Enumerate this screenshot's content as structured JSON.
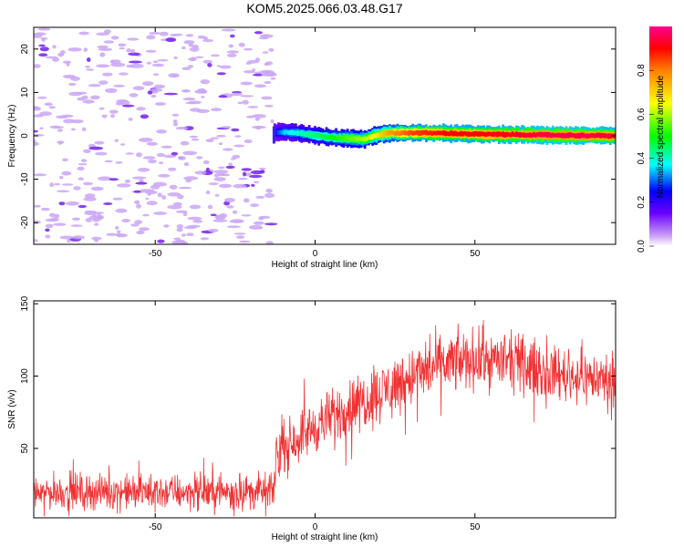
{
  "title": "KOM5.2025.066.03.48.G17",
  "chart_data": [
    {
      "type": "heatmap",
      "xlabel": "Height of straight line (km)",
      "ylabel": "Frequency (Hz)",
      "xlim": [
        -88,
        94
      ],
      "ylim": [
        -25,
        25
      ],
      "xticks": [
        -50,
        0,
        50
      ],
      "yticks": [
        -20,
        -10,
        0,
        10,
        20
      ],
      "colorbar": {
        "label": "Normalized spectral amplitude",
        "range": [
          0,
          1
        ],
        "ticks": [
          "0.0",
          "0.2",
          "0.4",
          "0.6",
          "0.8"
        ],
        "tick_values": [
          0.0,
          0.2,
          0.4,
          0.6,
          0.8
        ]
      },
      "noise_region": {
        "x": [
          -88,
          -13
        ],
        "amplitude": 0.08
      },
      "ridge": {
        "x": [
          -13,
          -10,
          -5,
          0,
          5,
          10,
          15,
          18,
          22,
          30,
          40,
          50,
          60,
          70,
          80,
          94
        ],
        "y": [
          0.8,
          0.9,
          0.6,
          0.1,
          -0.4,
          -0.6,
          -0.8,
          0.0,
          0.6,
          0.7,
          0.6,
          0.4,
          0.3,
          0.2,
          0.1,
          0.0
        ],
        "amp": [
          0.25,
          0.35,
          0.4,
          0.45,
          0.5,
          0.55,
          0.6,
          0.65,
          0.75,
          0.85,
          0.9,
          0.9,
          0.92,
          0.95,
          0.95,
          0.93
        ]
      }
    },
    {
      "type": "line",
      "xlabel": "Height of straight line (km)",
      "ylabel": "SNR (v/v)",
      "xlim": [
        -88,
        94
      ],
      "ylim": [
        2,
        152
      ],
      "xticks": [
        -50,
        0,
        50
      ],
      "yticks": [
        50,
        100,
        150
      ],
      "color": "#f03232",
      "envelope": {
        "x": [
          -88,
          -13,
          -12,
          0,
          10,
          20,
          30,
          40,
          50,
          60,
          70,
          80,
          94
        ],
        "mean": [
          20,
          20,
          48,
          65,
          78,
          88,
          100,
          108,
          112,
          110,
          104,
          100,
          97
        ],
        "spread": [
          10,
          10,
          13,
          15,
          16,
          17,
          17,
          17,
          17,
          16,
          15,
          15,
          15
        ]
      }
    }
  ]
}
